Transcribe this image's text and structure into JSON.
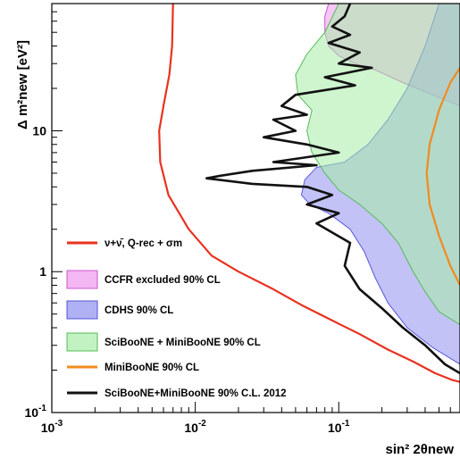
{
  "chart_data": {
    "type": "line",
    "title": "",
    "xlabel": "sin² 2θnew",
    "ylabel": "Δ m²new [eV²]",
    "x_scale": "log",
    "y_scale": "log",
    "xlim": [
      0.001,
      0.7
    ],
    "ylim": [
      0.1,
      80
    ],
    "grid": false,
    "legend_position": "bottom-left",
    "x_tick_labels": [
      {
        "value": 0.001,
        "label": "10",
        "exp": "-3"
      },
      {
        "value": 0.01,
        "label": "10",
        "exp": "-2"
      },
      {
        "value": 0.1,
        "label": "10",
        "exp": "-1"
      }
    ],
    "y_tick_labels": [
      {
        "value": 0.1,
        "label": "10",
        "exp": "-1"
      },
      {
        "value": 1,
        "label": "1",
        "exp": ""
      },
      {
        "value": 10,
        "label": "10",
        "exp": ""
      }
    ],
    "series": [
      {
        "name": "ν+ν̄, Q-rec + σm",
        "kind": "line",
        "color": "#e8321e",
        "points": [
          [
            0.007,
            80
          ],
          [
            0.0069,
            40
          ],
          [
            0.0066,
            25
          ],
          [
            0.006,
            15
          ],
          [
            0.0056,
            10
          ],
          [
            0.0057,
            6
          ],
          [
            0.0065,
            3.5
          ],
          [
            0.009,
            2
          ],
          [
            0.013,
            1.3
          ],
          [
            0.02,
            1.0
          ],
          [
            0.035,
            0.75
          ],
          [
            0.055,
            0.58
          ],
          [
            0.09,
            0.45
          ],
          [
            0.14,
            0.36
          ],
          [
            0.22,
            0.28
          ],
          [
            0.33,
            0.23
          ],
          [
            0.47,
            0.19
          ],
          [
            0.62,
            0.17
          ],
          [
            0.7,
            0.165
          ]
        ]
      },
      {
        "name": "CCFR excluded 90% CL",
        "kind": "area",
        "color": "#ee99ee",
        "edge": "#cc55cc",
        "points": [
          [
            0.7,
            15
          ],
          [
            0.45,
            18
          ],
          [
            0.28,
            22
          ],
          [
            0.18,
            27
          ],
          [
            0.13,
            30
          ],
          [
            0.1,
            34
          ],
          [
            0.085,
            40
          ],
          [
            0.08,
            50
          ],
          [
            0.08,
            65
          ],
          [
            0.085,
            80
          ],
          [
            0.7,
            80
          ]
        ]
      },
      {
        "name": "CDHS 90% CL",
        "kind": "area",
        "color": "#8f8ff0",
        "edge": "#5555dd",
        "points": [
          [
            0.7,
            0.22
          ],
          [
            0.45,
            0.29
          ],
          [
            0.3,
            0.4
          ],
          [
            0.22,
            0.6
          ],
          [
            0.18,
            0.9
          ],
          [
            0.15,
            1.4
          ],
          [
            0.12,
            2.0
          ],
          [
            0.085,
            2.6
          ],
          [
            0.063,
            3.0
          ],
          [
            0.055,
            3.5
          ],
          [
            0.058,
            4.5
          ],
          [
            0.07,
            5.5
          ],
          [
            0.11,
            6.0
          ],
          [
            0.16,
            8.0
          ],
          [
            0.22,
            12.0
          ],
          [
            0.3,
            20.0
          ],
          [
            0.4,
            40.0
          ],
          [
            0.5,
            80.0
          ],
          [
            0.7,
            80.0
          ]
        ]
      },
      {
        "name": "SciBooNE + MiniBooNE 90% CL",
        "kind": "area",
        "color": "#a8eca8",
        "edge": "#55bb55",
        "points": [
          [
            0.7,
            0.42
          ],
          [
            0.5,
            0.52
          ],
          [
            0.4,
            0.72
          ],
          [
            0.33,
            1.0
          ],
          [
            0.26,
            1.6
          ],
          [
            0.2,
            2.2
          ],
          [
            0.14,
            3.0
          ],
          [
            0.1,
            3.8
          ],
          [
            0.08,
            5.0
          ],
          [
            0.065,
            7.0
          ],
          [
            0.06,
            10.0
          ],
          [
            0.065,
            14.0
          ],
          [
            0.052,
            18.0
          ],
          [
            0.05,
            25.0
          ],
          [
            0.06,
            35.0
          ],
          [
            0.08,
            50.0
          ],
          [
            0.1,
            80.0
          ],
          [
            0.7,
            80.0
          ]
        ]
      },
      {
        "name": "MiniBooNE 90% CL",
        "kind": "line",
        "color": "#f08c1e",
        "points": [
          [
            0.7,
            0.8
          ],
          [
            0.6,
            1.1
          ],
          [
            0.5,
            1.8
          ],
          [
            0.43,
            3.0
          ],
          [
            0.41,
            5.0
          ],
          [
            0.43,
            8.0
          ],
          [
            0.5,
            14.0
          ],
          [
            0.6,
            22.0
          ],
          [
            0.7,
            28.0
          ]
        ]
      },
      {
        "name": "SciBooNE+MiniBooNE 90% C.L. 2012",
        "kind": "line",
        "color": "#111111",
        "points": [
          [
            0.12,
            80
          ],
          [
            0.11,
            65
          ],
          [
            0.09,
            55
          ],
          [
            0.12,
            48
          ],
          [
            0.085,
            42
          ],
          [
            0.14,
            36
          ],
          [
            0.1,
            30
          ],
          [
            0.17,
            28
          ],
          [
            0.08,
            24
          ],
          [
            0.13,
            21
          ],
          [
            0.05,
            18
          ],
          [
            0.04,
            15
          ],
          [
            0.06,
            13
          ],
          [
            0.035,
            12
          ],
          [
            0.05,
            10
          ],
          [
            0.03,
            9
          ],
          [
            0.06,
            8
          ],
          [
            0.1,
            7
          ],
          [
            0.035,
            6
          ],
          [
            0.07,
            5.7
          ],
          [
            0.025,
            5.2
          ],
          [
            0.015,
            4.8
          ],
          [
            0.012,
            4.6
          ],
          [
            0.025,
            4.2
          ],
          [
            0.06,
            4.0
          ],
          [
            0.09,
            3.5
          ],
          [
            0.06,
            3.0
          ],
          [
            0.1,
            2.6
          ],
          [
            0.07,
            2.2
          ],
          [
            0.12,
            1.6
          ],
          [
            0.11,
            1.1
          ],
          [
            0.14,
            0.75
          ],
          [
            0.2,
            0.55
          ],
          [
            0.28,
            0.4
          ],
          [
            0.4,
            0.3
          ],
          [
            0.55,
            0.22
          ],
          [
            0.7,
            0.19
          ]
        ]
      }
    ]
  },
  "legend": {
    "entries": [
      {
        "label": "ν+ν̄, Q-rec + σm",
        "color": "#e8321e",
        "kind": "line"
      },
      {
        "label": "CCFR excluded 90% CL",
        "color": "#ee99ee",
        "edge": "#cc55cc",
        "kind": "box"
      },
      {
        "label": "CDHS 90% CL",
        "color": "#8f8ff0",
        "edge": "#5555dd",
        "kind": "box"
      },
      {
        "label": "SciBooNE + MiniBooNE 90% CL",
        "color": "#a8eca8",
        "edge": "#55bb55",
        "kind": "box"
      },
      {
        "label": "MiniBooNE 90% CL",
        "color": "#f08c1e",
        "kind": "line"
      },
      {
        "label": "SciBooNE+MiniBooNE 90% C.L. 2012",
        "color": "#111111",
        "kind": "line"
      }
    ]
  }
}
